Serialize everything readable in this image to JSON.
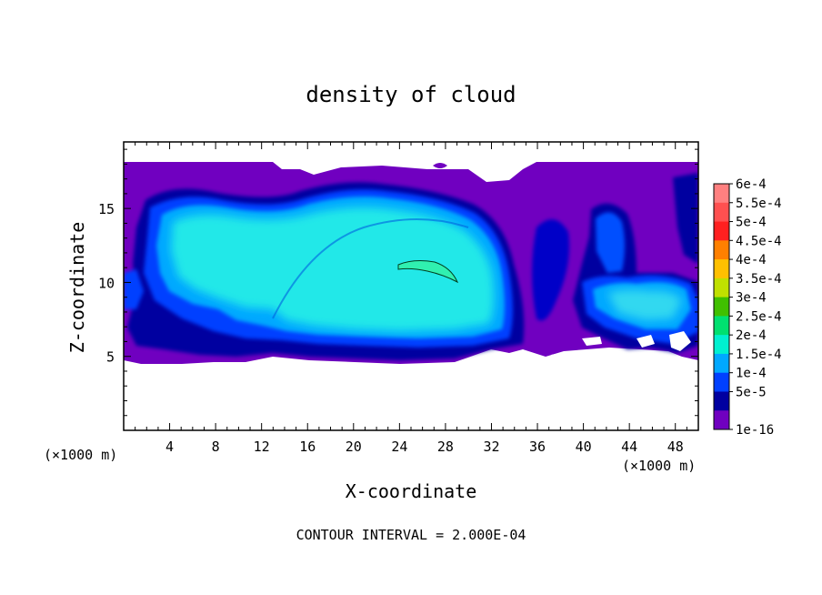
{
  "chart_data": {
    "type": "heatmap",
    "title": "density of cloud",
    "xlabel": "X-coordinate",
    "ylabel": "Z-coordinate",
    "x_unit_left": "(×1000 m)",
    "x_unit_right": "(×1000 m)",
    "xlim": [
      0,
      50
    ],
    "ylim": [
      0,
      19.5
    ],
    "x_ticks": [
      4,
      8,
      12,
      16,
      20,
      24,
      28,
      32,
      36,
      40,
      44,
      48
    ],
    "y_ticks": [
      5,
      10,
      15
    ],
    "footer": "CONTOUR INTERVAL = 2.000E-04",
    "colorbar": [
      {
        "label": "6e-4",
        "color": "#ff8080"
      },
      {
        "label": "5.5e-4",
        "color": "#ff5050"
      },
      {
        "label": "5e-4",
        "color": "#ff2020"
      },
      {
        "label": "4.5e-4",
        "color": "#ff8000"
      },
      {
        "label": "4e-4",
        "color": "#ffc000"
      },
      {
        "label": "3.5e-4",
        "color": "#c0e000"
      },
      {
        "label": "3e-4",
        "color": "#40c000"
      },
      {
        "label": "2.5e-4",
        "color": "#00e070"
      },
      {
        "label": "2e-4",
        "color": "#00f0d0"
      },
      {
        "label": "1.5e-4",
        "color": "#00a8ff"
      },
      {
        "label": "1e-4",
        "color": "#0040ff"
      },
      {
        "label": "5e-5",
        "color": "#0000a0"
      },
      {
        "label": "1e-16",
        "color": "#7000c0"
      }
    ]
  }
}
